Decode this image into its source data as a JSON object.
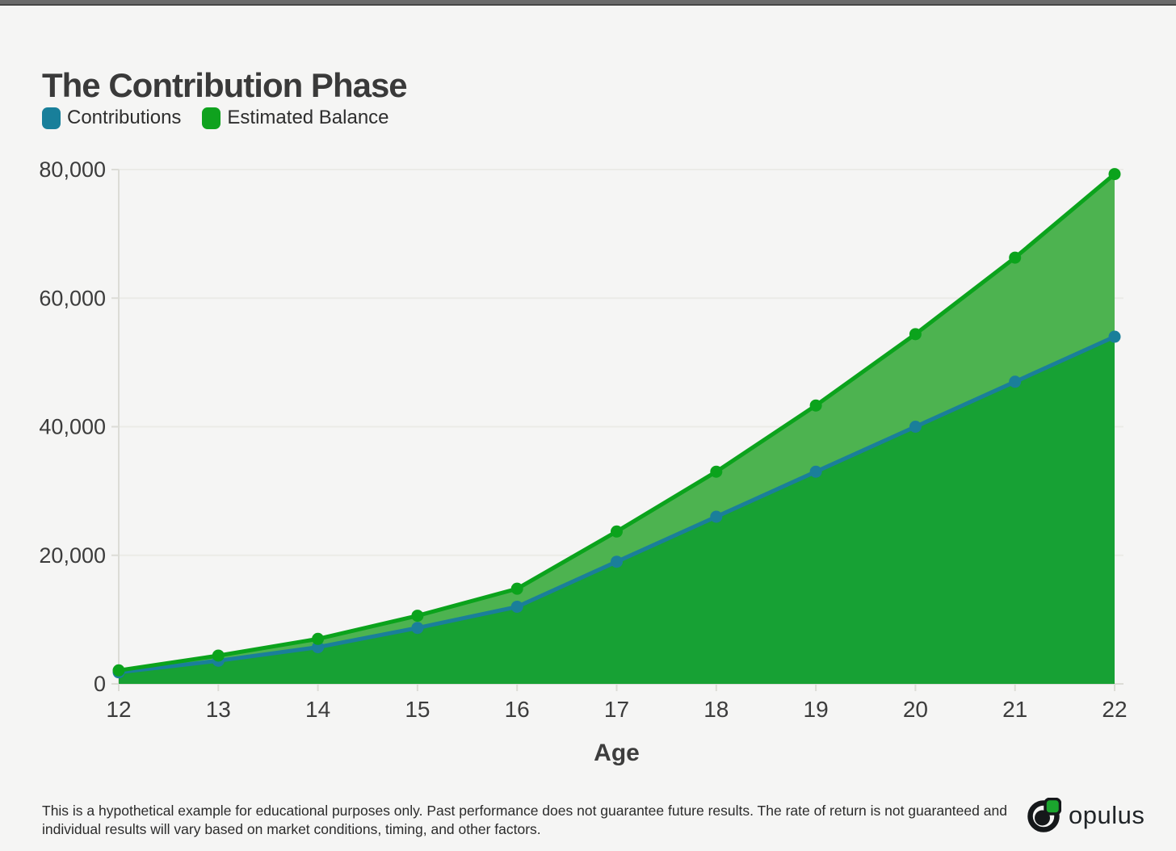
{
  "page": {
    "background": "#f5f5f4"
  },
  "header": {
    "title": "The Contribution Phase"
  },
  "legend": {
    "items": [
      {
        "label": "Contributions",
        "color": "#187f9a"
      },
      {
        "label": "Estimated Balance",
        "color": "#0fa21e"
      }
    ]
  },
  "chart_data": {
    "type": "area",
    "x": [
      12,
      13,
      14,
      15,
      16,
      17,
      18,
      19,
      20,
      21,
      22
    ],
    "xlabel": "Age",
    "ylim": [
      0,
      80000
    ],
    "yticks": [
      0,
      20000,
      40000,
      60000,
      80000
    ],
    "ytick_labels": [
      "0",
      "20,000",
      "40,000",
      "60,000",
      "80,000"
    ],
    "grid": true,
    "legend_position": "top-left",
    "series": [
      {
        "name": "Contributions",
        "values": [
          1800,
          3600,
          5700,
          8700,
          12000,
          19000,
          26000,
          33000,
          40000,
          47000,
          54000
        ],
        "line_color": "#1a7f9a",
        "fill_color": "#17a134"
      },
      {
        "name": "Estimated Balance",
        "values": [
          2100,
          4400,
          7000,
          10600,
          14800,
          23700,
          33000,
          43300,
          54400,
          66300,
          79300
        ],
        "line_color": "#0ba31c",
        "fill_color": "#4db350"
      }
    ],
    "colors": {
      "grid": "#ebebe7",
      "axis": "#dcdcd6",
      "tick_text": "#3c3c3c"
    }
  },
  "footer": {
    "disclaimer_line1": "This is a hypothetical example for educational purposes only. Past performance does not guarantee future results. The rate of return is not guaranteed and",
    "disclaimer_line2": "individual results will vary based on market conditions, timing, and other factors.",
    "logo_text": "opulus"
  }
}
